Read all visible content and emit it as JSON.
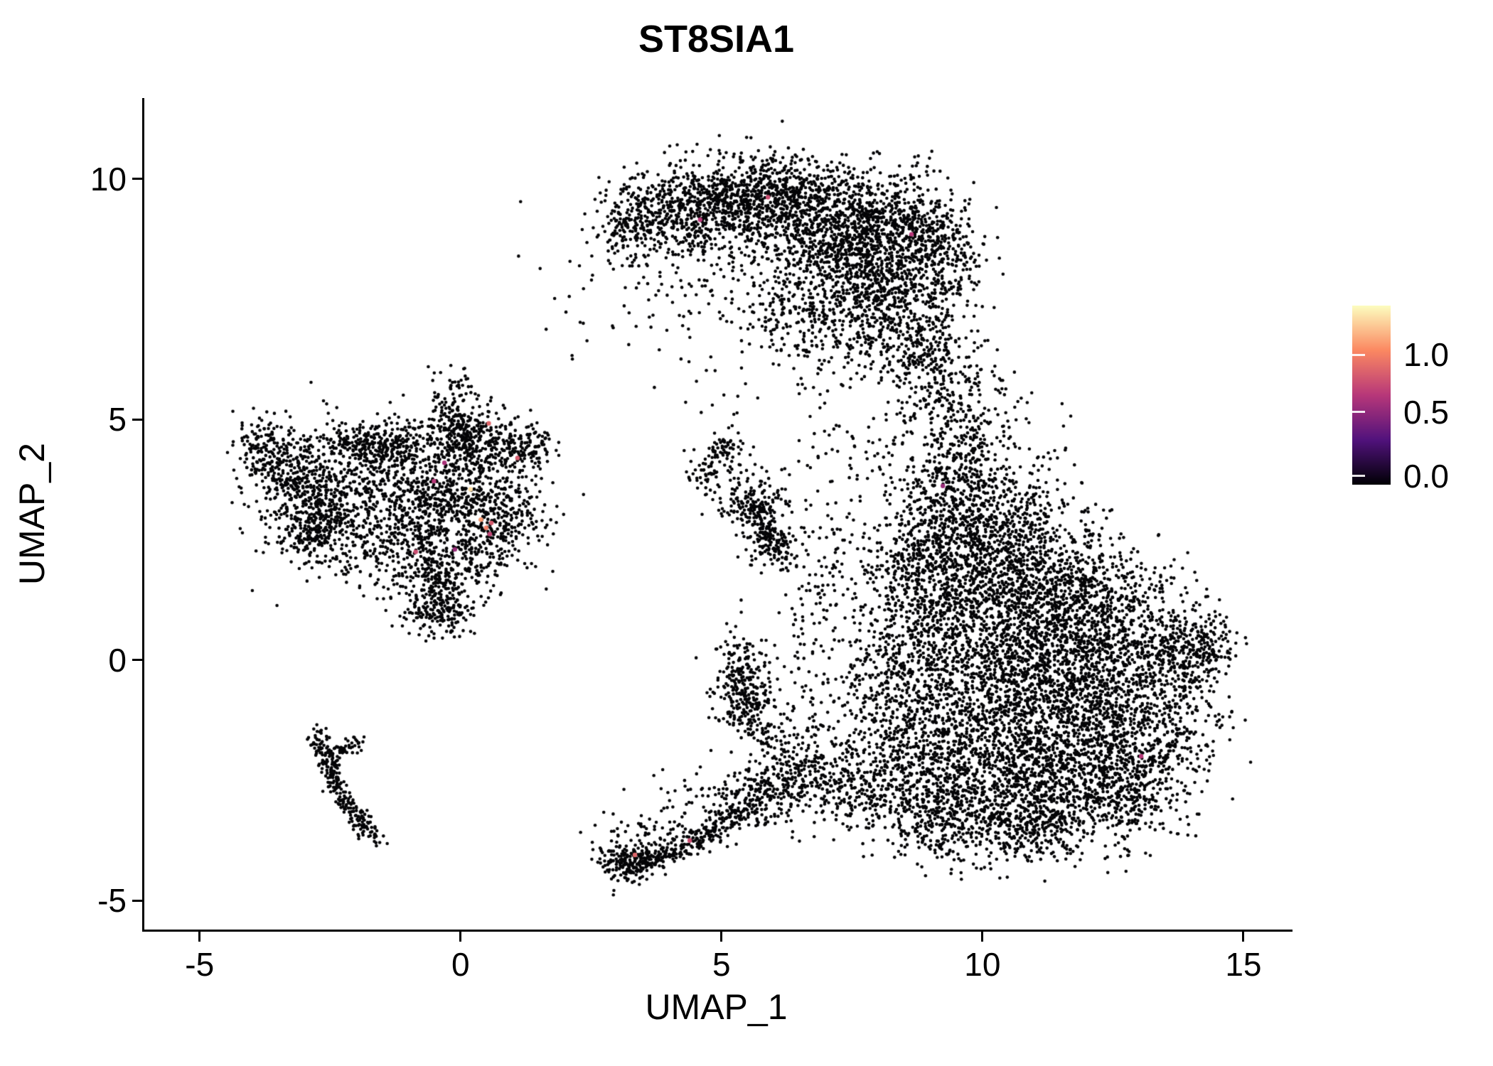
{
  "figure": {
    "background": "#FFFFFF"
  },
  "chart_data": {
    "type": "scatter",
    "title": "ST8SIA1",
    "xlabel": "UMAP_1",
    "ylabel": "UMAP_2",
    "xlim": [
      -6.1,
      15.9
    ],
    "ylim": [
      -5.6,
      11.68
    ],
    "x_ticks": [
      {
        "value": -5,
        "label": "-5"
      },
      {
        "value": 0,
        "label": "0"
      },
      {
        "value": 5,
        "label": "5"
      },
      {
        "value": 10,
        "label": "10"
      },
      {
        "value": 15,
        "label": "15"
      }
    ],
    "y_ticks": [
      {
        "value": -5,
        "label": "-5"
      },
      {
        "value": 0,
        "label": "0"
      },
      {
        "value": 5,
        "label": "5"
      },
      {
        "value": 10,
        "label": "10"
      }
    ],
    "grid": false,
    "point_color_zero": "#050507",
    "point_radius_px": 2.3,
    "expressed_radius_px": 3.2,
    "value_max": 1.39,
    "colormap": {
      "name": "magma",
      "stops": [
        [
          0.0,
          "#000004"
        ],
        [
          0.25,
          "#51127C"
        ],
        [
          0.5,
          "#B73779"
        ],
        [
          0.75,
          "#FB8861"
        ],
        [
          1.0,
          "#FCFDBF"
        ]
      ]
    },
    "legend": {
      "position": "right",
      "ticks": [
        {
          "label": "1.0",
          "frac_from_bottom": 0.726
        },
        {
          "label": "0.5",
          "frac_from_bottom": 0.405
        },
        {
          "label": "0.0",
          "frac_from_bottom": 0.048
        }
      ]
    },
    "seed": 20240817,
    "clusters": [
      [
        3.2,
        9.05,
        0.35,
        0.3,
        120
      ],
      [
        4.0,
        9.35,
        0.6,
        0.4,
        320
      ],
      [
        5.0,
        9.6,
        0.6,
        0.4,
        330
      ],
      [
        6.0,
        9.5,
        0.7,
        0.45,
        420
      ],
      [
        7.0,
        9.2,
        0.7,
        0.55,
        480
      ],
      [
        7.9,
        8.7,
        0.7,
        0.6,
        480
      ],
      [
        8.6,
        8.95,
        0.5,
        0.5,
        240
      ],
      [
        7.5,
        7.8,
        0.7,
        0.6,
        380
      ],
      [
        8.45,
        7.2,
        0.6,
        0.7,
        380
      ],
      [
        6.7,
        7.1,
        0.7,
        0.6,
        240
      ],
      [
        8.9,
        6.2,
        0.45,
        0.6,
        190
      ],
      [
        9.35,
        8.5,
        0.35,
        0.55,
        150
      ],
      [
        5.8,
        8.3,
        1.0,
        0.8,
        150
      ],
      [
        4.6,
        8.7,
        0.7,
        0.5,
        120
      ],
      [
        6.5,
        10.15,
        1.2,
        0.28,
        90
      ],
      [
        3.8,
        7.6,
        0.9,
        0.8,
        45
      ],
      [
        9.4,
        5.2,
        0.4,
        0.7,
        110
      ],
      [
        9.8,
        4.3,
        0.5,
        0.5,
        140
      ],
      [
        9.2,
        3.5,
        0.5,
        0.6,
        190
      ],
      [
        10.3,
        3.2,
        0.7,
        0.6,
        240
      ],
      [
        9.7,
        2.3,
        0.7,
        0.7,
        330
      ],
      [
        10.8,
        2.0,
        0.8,
        0.7,
        380
      ],
      [
        9.0,
        1.2,
        0.6,
        0.8,
        280
      ],
      [
        10.2,
        0.8,
        0.9,
        0.9,
        560
      ],
      [
        11.5,
        1.0,
        0.8,
        0.8,
        430
      ],
      [
        12.3,
        0.2,
        0.9,
        0.8,
        480
      ],
      [
        13.3,
        0.2,
        0.6,
        0.7,
        280
      ],
      [
        14.0,
        0.1,
        0.35,
        0.5,
        140
      ],
      [
        11.2,
        -0.5,
        1.0,
        0.9,
        650
      ],
      [
        9.7,
        -0.8,
        0.8,
        0.9,
        430
      ],
      [
        12.4,
        -1.5,
        0.9,
        0.8,
        520
      ],
      [
        10.8,
        -1.8,
        0.9,
        0.8,
        520
      ],
      [
        13.35,
        -1.8,
        0.6,
        0.6,
        230
      ],
      [
        9.3,
        -2.3,
        0.7,
        0.7,
        330
      ],
      [
        11.6,
        -2.8,
        0.9,
        0.6,
        380
      ],
      [
        10.2,
        -3.0,
        0.8,
        0.5,
        280
      ],
      [
        12.8,
        -2.8,
        0.6,
        0.5,
        190
      ],
      [
        9.0,
        -3.4,
        0.6,
        0.4,
        170
      ],
      [
        10.8,
        -3.6,
        0.7,
        0.35,
        170
      ],
      [
        8.4,
        -1.5,
        0.5,
        0.9,
        230
      ],
      [
        8.3,
        0.3,
        0.5,
        1.0,
        230
      ],
      [
        8.6,
        2.3,
        0.5,
        0.8,
        190
      ],
      [
        12.0,
        1.7,
        0.6,
        0.5,
        170
      ],
      [
        14.35,
        0.4,
        0.2,
        0.3,
        60
      ],
      [
        10.0,
        5.0,
        0.5,
        0.5,
        70
      ],
      [
        7.7,
        4.6,
        0.6,
        0.7,
        60
      ],
      [
        6.9,
        1.8,
        0.35,
        1.1,
        120
      ],
      [
        7.7,
        -0.5,
        0.5,
        0.9,
        90
      ],
      [
        -3.8,
        4.3,
        0.3,
        0.4,
        170
      ],
      [
        -3.3,
        3.9,
        0.3,
        0.35,
        140
      ],
      [
        -2.7,
        3.4,
        0.45,
        0.5,
        330
      ],
      [
        -2.9,
        2.7,
        0.35,
        0.35,
        190
      ],
      [
        -2.1,
        4.5,
        0.45,
        0.2,
        130
      ],
      [
        -1.6,
        4.4,
        0.4,
        0.25,
        110
      ],
      [
        -1.3,
        3.8,
        0.5,
        0.5,
        170
      ],
      [
        -0.9,
        2.9,
        0.5,
        0.55,
        240
      ],
      [
        -0.6,
        1.8,
        0.35,
        0.5,
        190
      ],
      [
        -0.4,
        1.1,
        0.3,
        0.3,
        170
      ],
      [
        -0.1,
        3.4,
        0.5,
        0.55,
        280
      ],
      [
        0.4,
        4.4,
        0.45,
        0.45,
        240
      ],
      [
        -0.2,
        5.3,
        0.2,
        0.45,
        100
      ],
      [
        0.0,
        4.75,
        0.3,
        0.3,
        110
      ],
      [
        0.8,
        2.95,
        0.4,
        0.4,
        210
      ],
      [
        1.2,
        4.35,
        0.3,
        0.3,
        120
      ],
      [
        0.3,
        2.2,
        0.4,
        0.4,
        140
      ],
      [
        -1.8,
        2.4,
        0.4,
        0.5,
        110
      ],
      [
        -1.0,
        4.6,
        0.4,
        0.3,
        90
      ],
      [
        -1.3,
        3.3,
        1.4,
        1.1,
        230
      ],
      [
        5.0,
        4.35,
        0.22,
        0.18,
        55
      ],
      [
        4.62,
        3.95,
        0.15,
        0.15,
        35
      ],
      [
        5.55,
        3.25,
        0.3,
        0.25,
        150
      ],
      [
        5.9,
        2.45,
        0.25,
        0.3,
        95
      ],
      [
        5.3,
        3.75,
        0.5,
        0.4,
        45
      ],
      [
        5.3,
        -0.3,
        0.22,
        0.45,
        150
      ],
      [
        5.45,
        -1.0,
        0.25,
        0.4,
        110
      ],
      [
        5.9,
        -0.6,
        0.5,
        0.7,
        70
      ],
      [
        6.6,
        -1.5,
        0.5,
        0.6,
        85
      ],
      [
        3.15,
        -4.15,
        0.28,
        0.22,
        150
      ],
      [
        5.6,
        -2.85,
        0.4,
        0.35,
        150
      ],
      [
        6.4,
        -2.6,
        0.5,
        0.4,
        130
      ],
      [
        7.2,
        -2.5,
        0.5,
        0.45,
        130
      ],
      [
        7.9,
        -2.7,
        0.5,
        0.45,
        150
      ],
      [
        4.7,
        -3.0,
        0.7,
        0.45,
        65
      ],
      [
        3.6,
        -3.5,
        0.4,
        0.3,
        55
      ],
      [
        3.6,
        7.5,
        0.8,
        0.7,
        30
      ],
      [
        4.9,
        5.4,
        0.5,
        0.5,
        12
      ]
    ],
    "segments": [
      [
        -2.85,
        -1.45,
        -2.25,
        -2.95,
        150,
        0.09
      ],
      [
        -2.25,
        -2.95,
        -1.65,
        -3.75,
        100,
        0.09
      ],
      [
        -2.55,
        -2.0,
        -1.95,
        -1.65,
        60,
        0.09
      ],
      [
        5.6,
        3.1,
        6.15,
        2.0,
        80,
        0.12
      ],
      [
        3.1,
        -4.35,
        4.3,
        -3.85,
        150,
        0.12
      ],
      [
        4.3,
        -3.85,
        5.4,
        -3.1,
        150,
        0.14
      ],
      [
        5.6,
        -1.3,
        6.4,
        -2.3,
        60,
        0.15
      ]
    ],
    "expressed_points": [
      [
        0.45,
        2.75,
        1.0
      ],
      [
        0.55,
        2.85,
        0.85
      ],
      [
        0.35,
        2.92,
        1.1
      ],
      [
        0.52,
        2.62,
        0.75
      ],
      [
        0.15,
        3.55,
        1.3
      ],
      [
        0.5,
        4.92,
        0.9
      ],
      [
        -0.9,
        2.25,
        0.8
      ],
      [
        -0.55,
        3.72,
        0.7
      ],
      [
        1.05,
        4.2,
        0.85
      ],
      [
        4.55,
        9.15,
        0.7
      ],
      [
        5.85,
        9.62,
        0.8
      ],
      [
        8.6,
        8.85,
        0.7
      ],
      [
        9.2,
        3.62,
        0.6
      ],
      [
        13.0,
        -2.0,
        0.7
      ],
      [
        3.3,
        -4.05,
        0.9
      ],
      [
        4.35,
        -3.75,
        0.8
      ],
      [
        -0.15,
        2.3,
        0.6
      ],
      [
        -0.35,
        4.1,
        0.65
      ]
    ]
  }
}
